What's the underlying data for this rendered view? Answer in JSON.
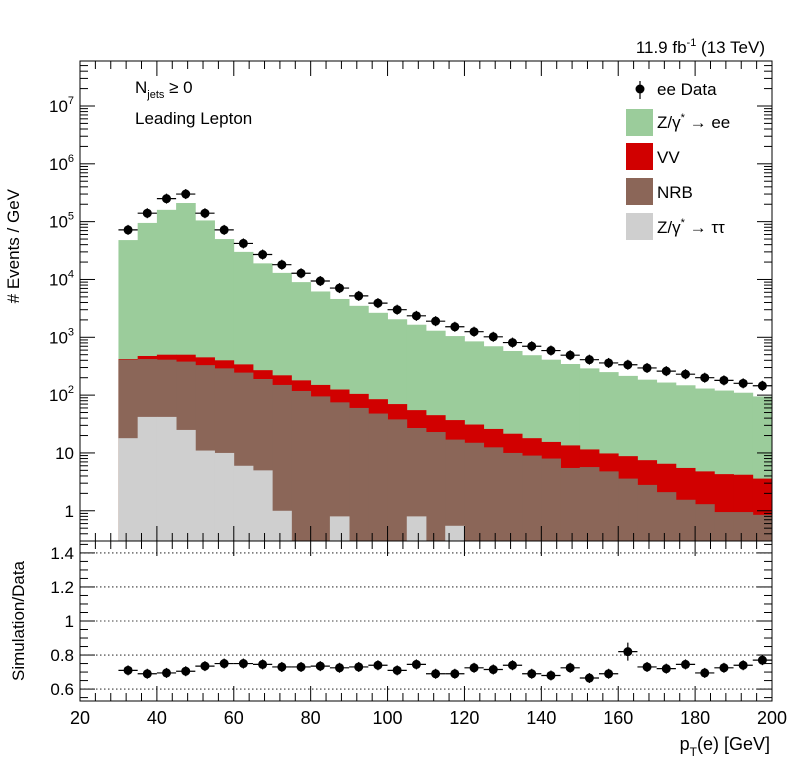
{
  "header": {
    "lumi_text": "11.9 fb",
    "lumi_exp": "-1",
    "energy_text": " (13 TeV)"
  },
  "annotations": {
    "njets_main": "N",
    "njets_sub": "jets",
    "njets_rest": " ≥ 0",
    "selection": "Leading Lepton"
  },
  "legend": {
    "data": "ee Data",
    "dy_ee_main": "Z/γ",
    "dy_ee_sup": "*",
    "dy_ee_rest": " → ee",
    "vv": "VV",
    "nrb": "NRB",
    "dy_tt_main": "Z/γ",
    "dy_tt_sup": "*",
    "dy_tt_rest": " → ττ"
  },
  "colors": {
    "dy_ee": "#9bcc9b",
    "vv": "#d10000",
    "nrb": "#8b6658",
    "dy_tt": "#cfcfcf",
    "data": "#000000"
  },
  "chart_data": [
    {
      "type": "bar",
      "subtype": "stacked-histogram",
      "yscale": "log",
      "ylabel": "# Events / GeV",
      "xlim": [
        20,
        200
      ],
      "ylim": [
        0.3,
        60000000
      ],
      "yticks": [
        {
          "value": 1,
          "label": "1"
        },
        {
          "value": 10,
          "label": "10"
        },
        {
          "value": 100,
          "label": "10",
          "exp": "2"
        },
        {
          "value": 1000,
          "label": "10",
          "exp": "3"
        },
        {
          "value": 10000,
          "label": "10",
          "exp": "4"
        },
        {
          "value": 100000,
          "label": "10",
          "exp": "5"
        },
        {
          "value": 1000000,
          "label": "10",
          "exp": "6"
        },
        {
          "value": 10000000,
          "label": "10",
          "exp": "7"
        }
      ],
      "bin_edges": [
        30,
        35,
        40,
        45,
        50,
        55,
        60,
        65,
        70,
        75,
        80,
        85,
        90,
        95,
        100,
        105,
        110,
        115,
        120,
        125,
        130,
        135,
        140,
        145,
        150,
        155,
        160,
        165,
        170,
        175,
        180,
        185,
        190,
        195,
        200
      ],
      "stack_order": [
        "dy_tt",
        "nrb",
        "vv",
        "dy_ee"
      ],
      "stack_totals": [
        {
          "key": "dy_tt",
          "values": [
            18,
            42,
            42,
            25,
            11,
            10,
            6,
            5,
            1,
            0.3,
            0.3,
            0.8,
            0.3,
            0.3,
            0.3,
            0.8,
            0.3,
            0.55,
            0.3,
            0.3,
            0.3,
            0.3,
            0.3,
            0.3,
            0.3,
            0.3,
            0.3,
            0.3,
            0.3,
            0.3,
            0.3,
            0.3,
            0.3,
            0.3
          ]
        },
        {
          "key": "nrb",
          "values": [
            410,
            420,
            410,
            380,
            330,
            290,
            245,
            190,
            150,
            118,
            95,
            75,
            60,
            48,
            38,
            27,
            23,
            17,
            15,
            12.5,
            10,
            9,
            8,
            5.5,
            5.7,
            4.8,
            3.6,
            2.8,
            2.1,
            1.55,
            1.3,
            0.95,
            0.95,
            0.85
          ]
        },
        {
          "key": "vv",
          "values": [
            420,
            475,
            500,
            500,
            450,
            400,
            340,
            270,
            220,
            180,
            150,
            125,
            105,
            85,
            70,
            55,
            45,
            37,
            31,
            26,
            21.5,
            18,
            15.5,
            13.5,
            11.5,
            9.8,
            8.8,
            7.5,
            6.5,
            5.5,
            4.8,
            4.3,
            4.2,
            3.6
          ]
        },
        {
          "key": "dy_ee",
          "values": [
            48000,
            95000,
            160000,
            210000,
            105000,
            50000,
            30000,
            19000,
            13000,
            9000,
            6200,
            4600,
            3500,
            2650,
            2050,
            1650,
            1300,
            1050,
            850,
            700,
            580,
            490,
            410,
            345,
            290,
            250,
            215,
            185,
            165,
            148,
            130,
            120,
            110,
            95
          ]
        }
      ],
      "data": {
        "name": "ee Data",
        "x": [
          32.5,
          37.5,
          42.5,
          47.5,
          52.5,
          57.5,
          62.5,
          67.5,
          72.5,
          77.5,
          82.5,
          87.5,
          92.5,
          97.5,
          102.5,
          107.5,
          112.5,
          117.5,
          122.5,
          127.5,
          132.5,
          137.5,
          142.5,
          147.5,
          152.5,
          157.5,
          162.5,
          167.5,
          172.5,
          177.5,
          182.5,
          187.5,
          192.5,
          197.5
        ],
        "y": [
          72000,
          140000,
          250000,
          300000,
          140000,
          72000,
          42000,
          27000,
          18000,
          12800,
          9400,
          7100,
          5200,
          3900,
          3000,
          2350,
          1900,
          1520,
          1250,
          1020,
          810,
          700,
          590,
          490,
          410,
          360,
          335,
          295,
          260,
          230,
          200,
          180,
          160,
          145
        ]
      },
      "annotations": [
        "N_jets ≥ 0",
        "Leading Lepton"
      ],
      "legend_position": "top-right"
    },
    {
      "type": "scatter",
      "ylabel": "Simulation/Data",
      "xlabel": "p_T(e) [GeV]",
      "xlim": [
        20,
        200
      ],
      "ylim": [
        0.53,
        1.47
      ],
      "xticks": [
        20,
        40,
        60,
        80,
        100,
        120,
        140,
        160,
        180,
        200
      ],
      "yticks": [
        0.6,
        0.8,
        1,
        1.2,
        1.4
      ],
      "ytick_labels": [
        "0.6",
        "0.8",
        "1",
        "1.2",
        "1.4"
      ],
      "grid": "horizontal-dotted",
      "x": [
        32.5,
        37.5,
        42.5,
        47.5,
        52.5,
        57.5,
        62.5,
        67.5,
        72.5,
        77.5,
        82.5,
        87.5,
        92.5,
        97.5,
        102.5,
        107.5,
        112.5,
        117.5,
        122.5,
        127.5,
        132.5,
        137.5,
        142.5,
        147.5,
        152.5,
        157.5,
        162.5,
        167.5,
        172.5,
        177.5,
        182.5,
        187.5,
        192.5,
        197.5
      ],
      "y": [
        0.71,
        0.69,
        0.695,
        0.705,
        0.735,
        0.75,
        0.75,
        0.745,
        0.73,
        0.73,
        0.735,
        0.725,
        0.73,
        0.74,
        0.71,
        0.745,
        0.69,
        0.69,
        0.725,
        0.715,
        0.74,
        0.69,
        0.68,
        0.725,
        0.665,
        0.69,
        0.82,
        0.73,
        0.72,
        0.745,
        0.695,
        0.725,
        0.74,
        0.77
      ]
    }
  ],
  "axis_labels": {
    "top_y": "# Events / GeV",
    "bottom_y": "Simulation/Data",
    "x_main": "p",
    "x_sub": "T",
    "x_rest": "(e) [GeV]"
  }
}
